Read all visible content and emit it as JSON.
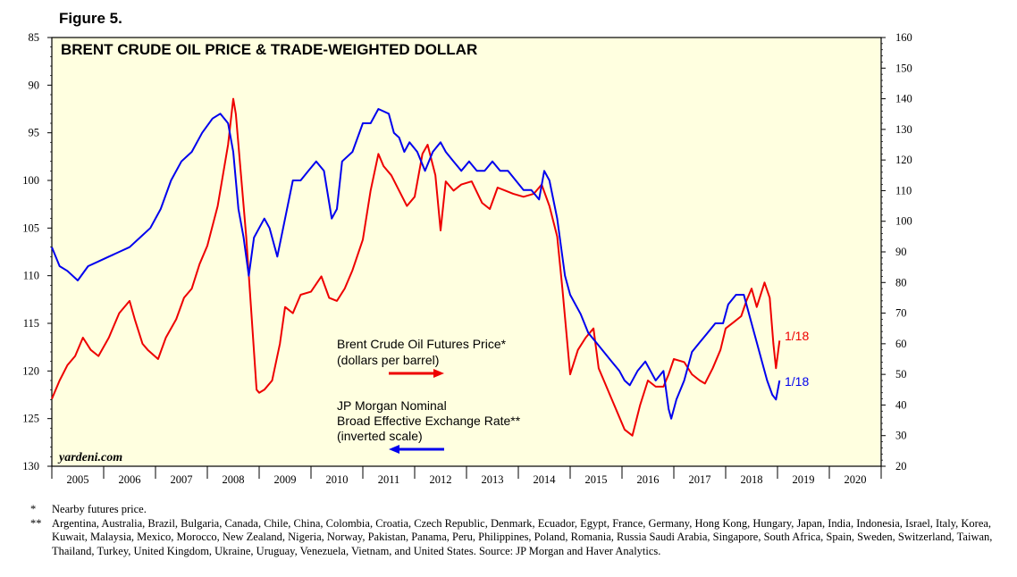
{
  "figure_label": "Figure 5.",
  "colors": {
    "plot_bg": "#ffffe0",
    "oil": "#ee0000",
    "dollar": "#0000ee",
    "axis": "#000000"
  },
  "chart_data": {
    "type": "line",
    "title": "BRENT CRUDE OIL PRICE & TRADE-WEIGHTED DOLLAR",
    "x_tick_labels": [
      "2005",
      "2006",
      "2007",
      "2008",
      "2009",
      "2010",
      "2011",
      "2012",
      "2013",
      "2014",
      "2015",
      "2016",
      "2017",
      "2018",
      "2019",
      "2020"
    ],
    "xlim": [
      2005,
      2021
    ],
    "left_axis": {
      "label": "JP Morgan Nominal Broad Effective Exchange Rate (inverted scale)",
      "inverted": true,
      "ylim": [
        85,
        130
      ],
      "ticks": [
        "85",
        "90",
        "95",
        "100",
        "105",
        "110",
        "115",
        "120",
        "125",
        "130"
      ]
    },
    "right_axis": {
      "label": "Brent Crude Oil Futures Price (dollars per barrel)",
      "ylim": [
        20,
        160
      ],
      "ticks": [
        "20",
        "30",
        "40",
        "50",
        "60",
        "70",
        "80",
        "90",
        "100",
        "110",
        "120",
        "130",
        "140",
        "150",
        "160"
      ]
    },
    "series": [
      {
        "name": "Brent Crude Oil Futures Price*",
        "unit_line": "(dollars per barrel)",
        "axis": "right",
        "end_label": "1/18",
        "x": [
          2005.0,
          2005.15,
          2005.3,
          2005.45,
          2005.6,
          2005.75,
          2005.9,
          2006.1,
          2006.3,
          2006.5,
          2006.6,
          2006.75,
          2006.85,
          2007.05,
          2007.2,
          2007.4,
          2007.55,
          2007.7,
          2007.85,
          2008.0,
          2008.2,
          2008.4,
          2008.5,
          2008.55,
          2008.65,
          2008.75,
          2008.85,
          2008.95,
          2009.0,
          2009.1,
          2009.25,
          2009.4,
          2009.5,
          2009.65,
          2009.8,
          2010.0,
          2010.2,
          2010.35,
          2010.5,
          2010.65,
          2010.8,
          2011.0,
          2011.15,
          2011.3,
          2011.4,
          2011.55,
          2011.7,
          2011.85,
          2012.0,
          2012.15,
          2012.25,
          2012.4,
          2012.5,
          2012.6,
          2012.75,
          2012.9,
          2013.1,
          2013.3,
          2013.45,
          2013.6,
          2013.75,
          2013.9,
          2014.1,
          2014.3,
          2014.45,
          2014.6,
          2014.75,
          2014.85,
          2015.0,
          2015.15,
          2015.3,
          2015.45,
          2015.55,
          2015.65,
          2015.8,
          2015.9,
          2016.05,
          2016.2,
          2016.35,
          2016.5,
          2016.65,
          2016.8,
          2016.9,
          2017.0,
          2017.2,
          2017.35,
          2017.5,
          2017.6,
          2017.75,
          2017.9,
          2018.0,
          2018.15,
          2018.3,
          2018.4,
          2018.5,
          2018.6,
          2018.75,
          2018.85,
          2018.92,
          2018.97,
          2019.04
        ],
        "values": [
          42,
          48,
          53,
          56,
          62,
          58,
          56,
          62,
          70,
          74,
          68,
          60,
          58,
          55,
          62,
          68,
          75,
          78,
          86,
          92,
          105,
          125,
          140,
          135,
          115,
          95,
          70,
          45,
          44,
          45,
          48,
          60,
          72,
          70,
          76,
          77,
          82,
          75,
          74,
          78,
          84,
          94,
          110,
          122,
          118,
          115,
          110,
          105,
          108,
          122,
          125,
          115,
          97,
          113,
          110,
          112,
          113,
          106,
          104,
          111,
          110,
          109,
          108,
          109,
          112,
          105,
          95,
          78,
          50,
          58,
          62,
          65,
          52,
          48,
          42,
          38,
          32,
          30,
          40,
          48,
          46,
          46,
          50,
          55,
          54,
          50,
          48,
          47,
          52,
          58,
          65,
          67,
          69,
          74,
          78,
          72,
          80,
          75,
          60,
          52,
          61
        ]
      },
      {
        "name": "JP Morgan Nominal Broad Effective Exchange Rate**",
        "unit_line": "(inverted scale)",
        "axis": "left",
        "end_label": "1/18",
        "x": [
          2005.0,
          2005.15,
          2005.3,
          2005.5,
          2005.7,
          2005.9,
          2006.1,
          2006.3,
          2006.5,
          2006.7,
          2006.9,
          2007.1,
          2007.3,
          2007.5,
          2007.7,
          2007.9,
          2008.1,
          2008.25,
          2008.4,
          2008.5,
          2008.6,
          2008.7,
          2008.8,
          2008.9,
          2009.0,
          2009.1,
          2009.2,
          2009.35,
          2009.5,
          2009.65,
          2009.8,
          2009.95,
          2010.1,
          2010.25,
          2010.4,
          2010.5,
          2010.6,
          2010.8,
          2011.0,
          2011.15,
          2011.3,
          2011.5,
          2011.6,
          2011.7,
          2011.8,
          2011.9,
          2012.05,
          2012.2,
          2012.35,
          2012.5,
          2012.6,
          2012.75,
          2012.9,
          2013.05,
          2013.2,
          2013.35,
          2013.5,
          2013.65,
          2013.8,
          2013.95,
          2014.1,
          2014.25,
          2014.4,
          2014.5,
          2014.6,
          2014.75,
          2014.9,
          2015.0,
          2015.1,
          2015.2,
          2015.35,
          2015.5,
          2015.65,
          2015.8,
          2015.95,
          2016.05,
          2016.15,
          2016.3,
          2016.45,
          2016.55,
          2016.65,
          2016.8,
          2016.9,
          2016.95,
          2017.05,
          2017.2,
          2017.35,
          2017.5,
          2017.65,
          2017.8,
          2017.95,
          2018.05,
          2018.2,
          2018.35,
          2018.45,
          2018.55,
          2018.7,
          2018.8,
          2018.9,
          2018.97,
          2019.04
        ],
        "values": [
          107,
          109,
          109.5,
          110.5,
          109,
          108.5,
          108,
          107.5,
          107,
          106,
          105,
          103,
          100,
          98,
          97,
          95,
          93.5,
          93,
          94,
          97,
          103,
          106,
          110,
          106,
          105,
          104,
          105,
          108,
          104,
          100,
          100,
          99,
          98,
          99,
          104,
          103,
          98,
          97,
          94,
          94,
          92.5,
          93,
          95,
          95.5,
          97,
          96,
          97,
          99,
          97,
          96,
          97,
          98,
          99,
          98,
          99,
          99,
          98,
          99,
          99,
          100,
          101,
          101,
          102,
          99,
          100,
          104,
          110,
          112,
          113,
          114,
          116,
          117,
          118,
          119,
          120,
          121,
          121.5,
          120,
          119,
          120,
          121,
          120,
          124,
          125,
          123,
          121,
          118,
          117,
          116,
          115,
          115,
          113,
          112,
          112,
          114,
          116,
          119,
          121,
          122.5,
          123,
          121
        ]
      }
    ],
    "source": "yardeni.com"
  },
  "annotations": {
    "oil_label_line1": "Brent Crude Oil Futures Price*",
    "oil_label_line2": "(dollars per barrel)",
    "dollar_label_line1": "JP Morgan Nominal",
    "dollar_label_line2": "Broad Effective Exchange Rate**",
    "dollar_label_line3": "(inverted scale)",
    "oil_end": "1/18",
    "dollar_end": "1/18",
    "source": "yardeni.com"
  },
  "footnotes": [
    {
      "mark": "*",
      "text": "Nearby futures price."
    },
    {
      "mark": "**",
      "text": "Argentina, Australia, Brazil, Bulgaria, Canada, Chile, China, Colombia, Croatia, Czech Republic, Denmark, Ecuador, Egypt, France, Germany, Hong Kong, Hungary, Japan, India, Indonesia, Israel, Italy, Korea, Kuwait, Malaysia, Mexico, Morocco, New Zealand, Nigeria, Norway, Pakistan, Panama, Peru, Philippines, Poland, Romania, Russia Saudi Arabia, Singapore, South Africa, Spain, Sweden, Switzerland, Taiwan, Thailand, Turkey, United Kingdom, Ukraine, Uruguay, Venezuela, Vietnam, and United States. Source: JP Morgan and Haver Analytics."
    }
  ]
}
